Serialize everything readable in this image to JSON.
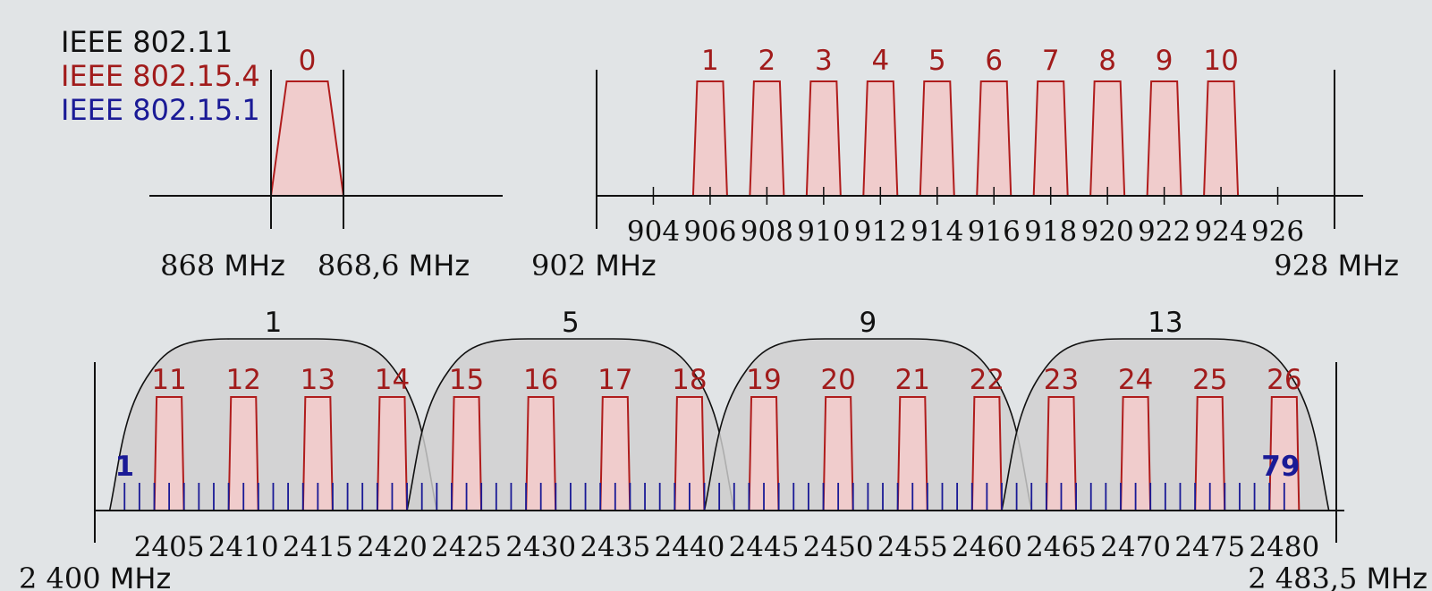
{
  "legend": [
    {
      "prefix": "IEEE",
      "standard": "802.11",
      "color": "#111111"
    },
    {
      "prefix": "IEEE",
      "standard": "802.15.4",
      "color": "#a11b1b"
    },
    {
      "prefix": "IEEE",
      "standard": "802.15.1",
      "color": "#1a1a96"
    }
  ],
  "colors": {
    "axis": "#111111",
    "wifi_fill": "#cfcfcf",
    "zigbee_fill": "#f0cccc",
    "zigbee_stroke": "#b01c1c",
    "zigbee_label": "#a11b1b",
    "bluetooth": "#1a1a96",
    "background": "#e1e4e6"
  },
  "band_868": {
    "channel": "0",
    "start_label": {
      "num": "868",
      "unit": "MHz"
    },
    "end_label": {
      "num": "868,6",
      "unit": "MHz"
    }
  },
  "band_915": {
    "channels": [
      "1",
      "2",
      "3",
      "4",
      "5",
      "6",
      "7",
      "8",
      "9",
      "10"
    ],
    "tick_labels": [
      "904",
      "906",
      "908",
      "910",
      "912",
      "914",
      "916",
      "918",
      "920",
      "922",
      "924",
      "926"
    ],
    "start_label": {
      "num": "902",
      "unit": "MHz"
    },
    "end_label": {
      "num": "928",
      "unit": "MHz"
    }
  },
  "band_2400": {
    "wifi_channels": [
      "1",
      "5",
      "9",
      "13"
    ],
    "zigbee_channels": [
      "11",
      "12",
      "13",
      "14",
      "15",
      "16",
      "17",
      "18",
      "19",
      "20",
      "21",
      "22",
      "23",
      "24",
      "25",
      "26"
    ],
    "bluetooth_first": "1",
    "bluetooth_last": "79",
    "bluetooth_count": 79,
    "tick_labels": [
      "2405",
      "2410",
      "2415",
      "2420",
      "2425",
      "2430",
      "2435",
      "2440",
      "2445",
      "2450",
      "2455",
      "2460",
      "2465",
      "2470",
      "2475",
      "2480"
    ],
    "start_label": {
      "num": "2 400",
      "unit": "MHz"
    },
    "end_label": {
      "num": "2 483,5",
      "unit": "MHz"
    }
  }
}
